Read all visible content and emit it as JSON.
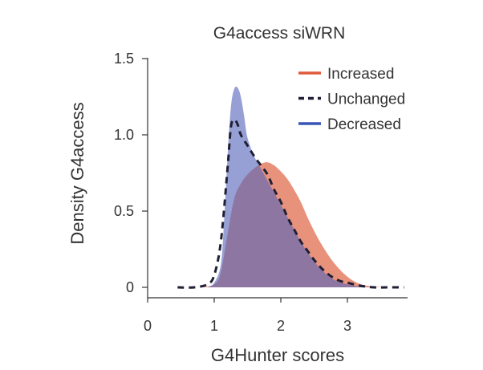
{
  "chart_data": {
    "type": "area",
    "title": "G4access siWRN",
    "xlabel": "G4Hunter scores",
    "ylabel": "Density G4access",
    "xlim": [
      0,
      3.9
    ],
    "ylim": [
      0,
      1.55
    ],
    "xticks": [
      "0",
      "1",
      "2",
      "3"
    ],
    "yticks": [
      "0",
      "0.5",
      "1.0",
      "1.5"
    ],
    "legend_position": "top-right",
    "series": [
      {
        "name": "Increased",
        "color": "#e05a3c",
        "fill": "#e06848",
        "style": "filled",
        "x": [
          0.8,
          1.0,
          1.1,
          1.2,
          1.3,
          1.4,
          1.5,
          1.6,
          1.7,
          1.8,
          1.9,
          2.0,
          2.1,
          2.2,
          2.3,
          2.4,
          2.5,
          2.6,
          2.7,
          2.8,
          2.9,
          3.0,
          3.1,
          3.2,
          3.3,
          3.4,
          3.5
        ],
        "y": [
          0.0,
          0.02,
          0.1,
          0.35,
          0.58,
          0.68,
          0.74,
          0.78,
          0.81,
          0.82,
          0.8,
          0.76,
          0.71,
          0.64,
          0.56,
          0.46,
          0.37,
          0.29,
          0.22,
          0.16,
          0.11,
          0.07,
          0.04,
          0.02,
          0.01,
          0.005,
          0.0
        ]
      },
      {
        "name": "Unchanged",
        "color": "#1f1f35",
        "style": "dashed",
        "x": [
          0.45,
          0.7,
          0.9,
          1.0,
          1.1,
          1.2,
          1.25,
          1.3,
          1.35,
          1.4,
          1.5,
          1.6,
          1.7,
          1.8,
          1.9,
          2.0,
          2.1,
          2.2,
          2.3,
          2.4,
          2.5,
          2.6,
          2.7,
          2.8,
          2.9,
          3.0,
          3.2,
          3.4,
          3.6,
          3.85
        ],
        "y": [
          0.0,
          0.0,
          0.02,
          0.08,
          0.3,
          0.78,
          1.05,
          1.1,
          1.07,
          1.0,
          0.93,
          0.86,
          0.8,
          0.74,
          0.64,
          0.56,
          0.46,
          0.38,
          0.3,
          0.24,
          0.18,
          0.13,
          0.09,
          0.06,
          0.04,
          0.03,
          0.01,
          0.0,
          0.0,
          0.0
        ]
      },
      {
        "name": "Decreased",
        "color": "#3a55b5",
        "fill": "#5566bb",
        "style": "filled",
        "x": [
          0.9,
          1.0,
          1.1,
          1.15,
          1.2,
          1.25,
          1.3,
          1.35,
          1.4,
          1.45,
          1.5,
          1.6,
          1.7,
          1.8,
          1.9,
          2.0,
          2.1,
          2.2,
          2.3,
          2.4,
          2.5,
          2.6,
          2.7,
          2.8,
          2.9,
          3.0,
          3.1,
          3.2,
          3.3
        ],
        "y": [
          0.0,
          0.03,
          0.15,
          0.45,
          0.85,
          1.18,
          1.3,
          1.31,
          1.25,
          1.12,
          0.98,
          0.86,
          0.78,
          0.7,
          0.62,
          0.54,
          0.46,
          0.38,
          0.3,
          0.23,
          0.17,
          0.12,
          0.08,
          0.05,
          0.03,
          0.02,
          0.01,
          0.005,
          0.0
        ]
      }
    ]
  }
}
